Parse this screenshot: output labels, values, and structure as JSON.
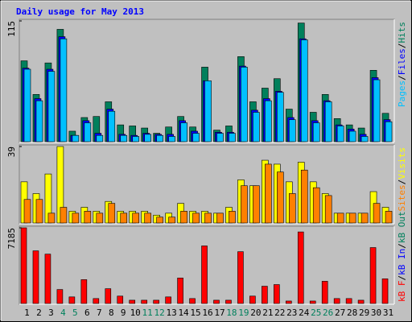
{
  "chart_data": [
    {
      "type": "bar",
      "title": "Daily usage for May 2013",
      "ylim": [
        0,
        115
      ],
      "yticks": [
        115
      ],
      "legend_separator": "/",
      "series": [
        {
          "name": "Hits",
          "color": "#00805C",
          "values": [
            77,
            45,
            75,
            107,
            10,
            23,
            24,
            38,
            16,
            15,
            13,
            8,
            14,
            24,
            14,
            71,
            11,
            15,
            81,
            38,
            51,
            60,
            31,
            113,
            28,
            45,
            22,
            16,
            13,
            68,
            27
          ]
        },
        {
          "name": "Files",
          "color": "#0000FF",
          "values": [
            70,
            41,
            69,
            100,
            6,
            20,
            8,
            31,
            7,
            6,
            8,
            7,
            7,
            20,
            10,
            58,
            9,
            9,
            72,
            30,
            41,
            48,
            23,
            98,
            20,
            39,
            16,
            12,
            7,
            61,
            21
          ]
        },
        {
          "name": "Pages",
          "color": "#00C0FF",
          "values": [
            69,
            39,
            67,
            98,
            6,
            18,
            6,
            29,
            6,
            5,
            7,
            6,
            5,
            18,
            8,
            58,
            8,
            8,
            71,
            28,
            39,
            47,
            21,
            97,
            18,
            38,
            15,
            10,
            5,
            59,
            19
          ]
        }
      ]
    },
    {
      "type": "bar",
      "ylim": [
        0,
        39
      ],
      "yticks": [
        39
      ],
      "series": [
        {
          "name": "Visits",
          "color": "#FFFF00",
          "values": [
            21,
            15,
            25,
            39,
            6,
            8,
            6,
            11,
            6,
            6,
            6,
            4,
            5,
            10,
            6,
            6,
            5,
            8,
            22,
            19,
            32,
            30,
            21,
            31,
            21,
            15,
            5,
            5,
            5,
            16,
            8
          ]
        },
        {
          "name": "Sites",
          "color": "#FF8000",
          "values": [
            12,
            12,
            5,
            8,
            5,
            6,
            5,
            10,
            5,
            5,
            5,
            3,
            3,
            6,
            5,
            5,
            5,
            6,
            19,
            19,
            30,
            26,
            15,
            27,
            18,
            14,
            5,
            5,
            5,
            10,
            6
          ]
        }
      ]
    },
    {
      "type": "bar",
      "ylim": [
        0,
        7185
      ],
      "yticks": [
        7185
      ],
      "categories": [
        "1",
        "2",
        "3",
        "4",
        "5",
        "6",
        "7",
        "8",
        "9",
        "10",
        "11",
        "12",
        "13",
        "14",
        "15",
        "16",
        "17",
        "18",
        "19",
        "20",
        "21",
        "22",
        "23",
        "24",
        "25",
        "26",
        "27",
        "28",
        "29",
        "30",
        "31"
      ],
      "category_colors": [
        "#000000",
        "#000000",
        "#000000",
        "#00805C",
        "#00805C",
        "#000000",
        "#000000",
        "#000000",
        "#000000",
        "#000000",
        "#00805C",
        "#00805C",
        "#000000",
        "#000000",
        "#000000",
        "#000000",
        "#000000",
        "#00805C",
        "#00805C",
        "#000000",
        "#000000",
        "#000000",
        "#000000",
        "#000000",
        "#00805C",
        "#00805C",
        "#000000",
        "#000000",
        "#000000",
        "#000000",
        "#000000"
      ],
      "series": [
        {
          "name": "kB F",
          "color": "#FF0000",
          "values": [
            7185,
            5000,
            4686,
            1328,
            625,
            2265,
            469,
            1406,
            703,
            312,
            312,
            312,
            625,
            2421,
            469,
            5467,
            312,
            312,
            4920,
            703,
            1640,
            1796,
            234,
            6795,
            234,
            2109,
            469,
            469,
            312,
            5311,
            2343
          ]
        }
      ],
      "extra_legend": [
        {
          "name": "kB In",
          "color": "#0000FF"
        },
        {
          "name": "kB Out",
          "color": "#00805C"
        }
      ]
    }
  ]
}
